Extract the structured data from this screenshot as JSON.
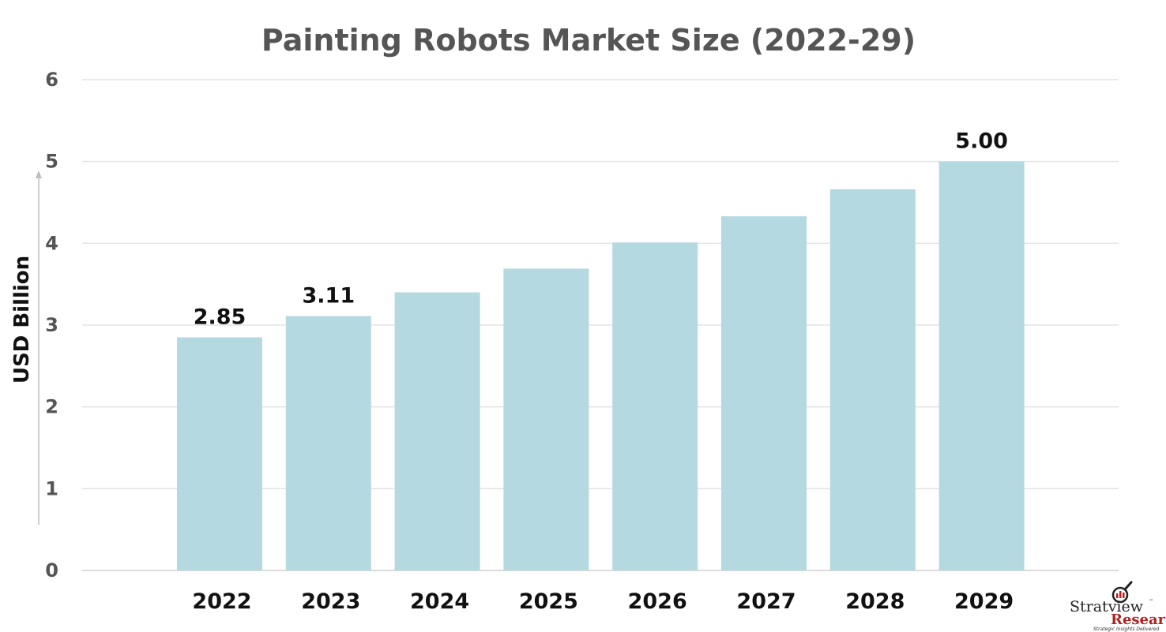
{
  "chart_data": {
    "type": "bar",
    "title": "Painting Robots Market Size (2022-29)",
    "xlabel": "",
    "ylabel": "USD Billion",
    "ylim": [
      0,
      6
    ],
    "yticks": [
      0,
      1,
      2,
      3,
      4,
      5,
      6
    ],
    "grid": true,
    "categories": [
      "2022",
      "2023",
      "2024",
      "2025",
      "2026",
      "2027",
      "2028",
      "2029"
    ],
    "values": [
      2.85,
      3.11,
      3.4,
      3.69,
      4.01,
      4.33,
      4.66,
      5.0
    ],
    "data_labels": [
      "2.85",
      "3.11",
      "",
      "",
      "",
      "",
      "",
      "5.00"
    ],
    "bar_color": "#b4d9e0",
    "grid_color": "#e3e3e3"
  },
  "logo": {
    "name": "Stratview",
    "trademark": "™",
    "sub": "Research",
    "tagline": "Strategic Insights Delivered"
  }
}
